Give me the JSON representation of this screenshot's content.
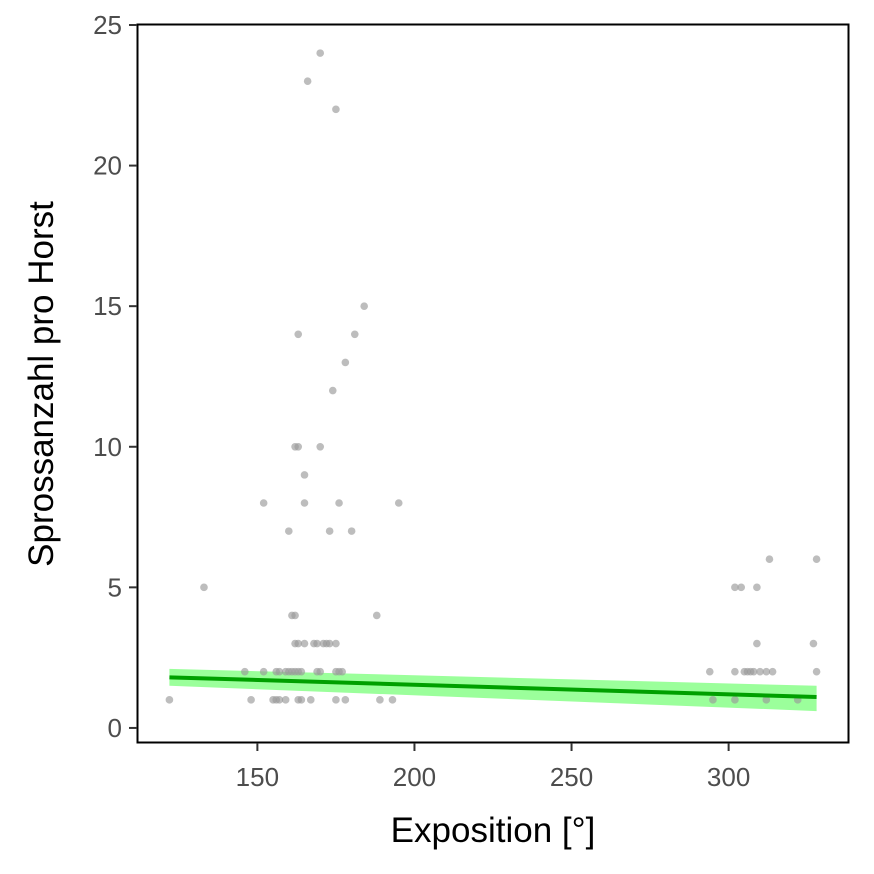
{
  "chart_data": {
    "type": "scatter",
    "title": "",
    "xlabel": "Exposition [°]",
    "ylabel": "Sprossanzahl pro Horst",
    "xlim": [
      112,
      338
    ],
    "ylim": [
      -0.5,
      25
    ],
    "xticks": [
      150,
      200,
      250,
      300
    ],
    "yticks": [
      0,
      5,
      10,
      15,
      20,
      25
    ],
    "grid": false,
    "legend": "none",
    "colors": {
      "points": "#9a9a9a",
      "fit_line": "#00a000",
      "confidence_band": "#90ff90",
      "axis": "#333333",
      "tick_text": "#4d4d4d",
      "panel_border": "#000000"
    },
    "points": [
      {
        "x": 122,
        "y": 1
      },
      {
        "x": 133,
        "y": 5
      },
      {
        "x": 146,
        "y": 2
      },
      {
        "x": 148,
        "y": 1
      },
      {
        "x": 152,
        "y": 8
      },
      {
        "x": 152,
        "y": 2
      },
      {
        "x": 155,
        "y": 1
      },
      {
        "x": 156,
        "y": 1
      },
      {
        "x": 156,
        "y": 2
      },
      {
        "x": 157,
        "y": 1
      },
      {
        "x": 157,
        "y": 2
      },
      {
        "x": 159,
        "y": 2
      },
      {
        "x": 159,
        "y": 1
      },
      {
        "x": 160,
        "y": 7
      },
      {
        "x": 160,
        "y": 2
      },
      {
        "x": 161,
        "y": 4
      },
      {
        "x": 161,
        "y": 2
      },
      {
        "x": 162,
        "y": 4
      },
      {
        "x": 162,
        "y": 3
      },
      {
        "x": 162,
        "y": 2
      },
      {
        "x": 162,
        "y": 10
      },
      {
        "x": 163,
        "y": 14
      },
      {
        "x": 163,
        "y": 10
      },
      {
        "x": 163,
        "y": 3
      },
      {
        "x": 163,
        "y": 2
      },
      {
        "x": 163,
        "y": 1
      },
      {
        "x": 164,
        "y": 1
      },
      {
        "x": 164,
        "y": 2
      },
      {
        "x": 165,
        "y": 8
      },
      {
        "x": 165,
        "y": 9
      },
      {
        "x": 165,
        "y": 3
      },
      {
        "x": 166,
        "y": 23
      },
      {
        "x": 167,
        "y": 1
      },
      {
        "x": 168,
        "y": 3
      },
      {
        "x": 169,
        "y": 3
      },
      {
        "x": 169,
        "y": 2
      },
      {
        "x": 170,
        "y": 24
      },
      {
        "x": 170,
        "y": 10
      },
      {
        "x": 170,
        "y": 2
      },
      {
        "x": 171,
        "y": 3
      },
      {
        "x": 172,
        "y": 3
      },
      {
        "x": 173,
        "y": 7
      },
      {
        "x": 173,
        "y": 3
      },
      {
        "x": 174,
        "y": 12
      },
      {
        "x": 175,
        "y": 22
      },
      {
        "x": 175,
        "y": 3
      },
      {
        "x": 175,
        "y": 2
      },
      {
        "x": 175,
        "y": 1
      },
      {
        "x": 176,
        "y": 8
      },
      {
        "x": 176,
        "y": 2
      },
      {
        "x": 177,
        "y": 2
      },
      {
        "x": 178,
        "y": 13
      },
      {
        "x": 178,
        "y": 1
      },
      {
        "x": 180,
        "y": 7
      },
      {
        "x": 181,
        "y": 14
      },
      {
        "x": 184,
        "y": 15
      },
      {
        "x": 188,
        "y": 4
      },
      {
        "x": 189,
        "y": 1
      },
      {
        "x": 193,
        "y": 1
      },
      {
        "x": 195,
        "y": 8
      },
      {
        "x": 294,
        "y": 2
      },
      {
        "x": 295,
        "y": 1
      },
      {
        "x": 302,
        "y": 5
      },
      {
        "x": 302,
        "y": 2
      },
      {
        "x": 302,
        "y": 1
      },
      {
        "x": 304,
        "y": 5
      },
      {
        "x": 305,
        "y": 2
      },
      {
        "x": 306,
        "y": 2
      },
      {
        "x": 307,
        "y": 2
      },
      {
        "x": 308,
        "y": 2
      },
      {
        "x": 309,
        "y": 3
      },
      {
        "x": 309,
        "y": 5
      },
      {
        "x": 310,
        "y": 2
      },
      {
        "x": 312,
        "y": 2
      },
      {
        "x": 312,
        "y": 1
      },
      {
        "x": 313,
        "y": 6
      },
      {
        "x": 314,
        "y": 2
      },
      {
        "x": 322,
        "y": 1
      },
      {
        "x": 327,
        "y": 3
      },
      {
        "x": 328,
        "y": 6
      },
      {
        "x": 328,
        "y": 2
      }
    ],
    "fit": {
      "x": [
        122,
        328
      ],
      "y": [
        1.8,
        1.1
      ],
      "lower": [
        1.5,
        0.6
      ],
      "upper": [
        2.1,
        1.5
      ]
    }
  }
}
